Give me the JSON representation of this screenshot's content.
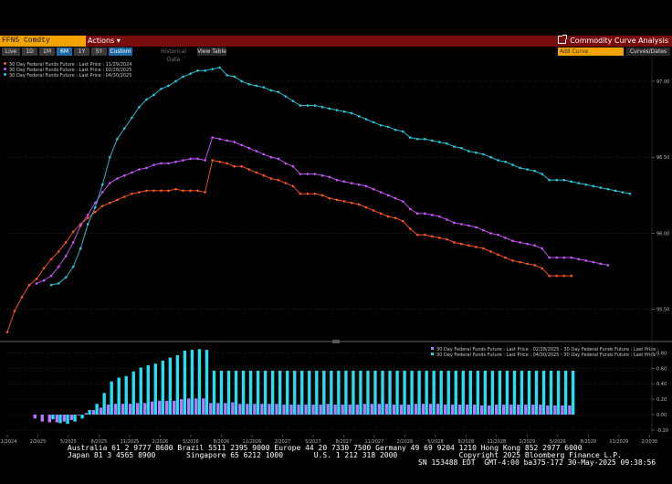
{
  "title_bar": {
    "ticker": "FFN5 Comdty",
    "actions_label": "Actions ▾",
    "analysis_label": "Commodity Curve Analysis"
  },
  "toolbar": {
    "buttons": [
      "Live",
      "1D",
      "1M",
      "6M",
      "1Y",
      "5Y",
      "Custom"
    ],
    "active_button": "Custom",
    "historical_label": "Historical Date",
    "view_table_label": "View Table",
    "add_curve_placeholder": "Add Curve",
    "curves_dates_label": "Curves/Dates"
  },
  "colors": {
    "series_1": "#ff5522",
    "series_2": "#cc55ff",
    "series_3": "#22ccdd",
    "bar_1": "#bb77ff",
    "bar_2": "#22e0f0",
    "title_bar": "#7a0d0d",
    "ticker_bg": "#f4a300",
    "active_button": "#1f6aa5"
  },
  "footer": {
    "line1": "Australia 61 2 9777 8600 Brazil 5511 2395 9000 Europe 44 20 7330 7500 Germany 49 69 9204 1210 Hong Kong 852 2977 6000",
    "line2": "Japan 81 3 4565 8900       Singapore 65 6212 1000       U.S. 1 212 318 2000              Copyright 2025 Bloomberg Finance L.P.",
    "line3": "SN 153488 EDT  GMT-4:00 ba375-172 30-May-2025 09:38:56"
  },
  "chart_data": [
    {
      "type": "line",
      "title": "",
      "x_tick_labels": [
        "11/2024",
        "2/2025",
        "5/2025",
        "8/2025",
        "11/2025",
        "2/2026",
        "5/2026",
        "8/2026",
        "11/2026",
        "2/2027",
        "5/2027",
        "8/2027",
        "11/2027",
        "2/2028",
        "5/2028",
        "8/2028",
        "11/2028",
        "2/2029",
        "5/2029",
        "8/2029",
        "11/2029",
        "2/2030"
      ],
      "y_tick_labels": [
        "95.50",
        "96.00",
        "96.50",
        "97.00"
      ],
      "ylim": [
        95.3,
        97.15
      ],
      "series": [
        {
          "name": "30 Day Federal Funds Future : Last Price : 11/29/2024",
          "color": "#ff5522",
          "values": [
            95.35,
            95.49,
            95.58,
            95.66,
            95.7,
            95.77,
            95.83,
            95.88,
            95.94,
            96.01,
            96.06,
            96.1,
            96.14,
            96.18,
            96.2,
            96.22,
            96.24,
            96.26,
            96.27,
            96.28,
            96.28,
            96.28,
            96.28,
            96.29,
            96.28,
            96.28,
            96.28,
            96.27,
            96.48,
            96.47,
            96.46,
            96.44,
            96.44,
            96.42,
            96.4,
            96.38,
            96.36,
            96.35,
            96.33,
            96.31,
            96.26,
            96.26,
            96.26,
            96.25,
            96.23,
            96.22,
            96.21,
            96.2,
            96.19,
            96.17,
            96.15,
            96.13,
            96.11,
            96.1,
            96.08,
            96.03,
            95.99,
            95.99,
            95.98,
            95.97,
            95.96,
            95.94,
            95.93,
            95.92,
            95.91,
            95.9,
            95.88,
            95.86,
            95.84,
            95.82,
            95.81,
            95.8,
            95.79,
            95.77,
            95.72,
            95.72,
            95.72,
            95.72
          ]
        },
        {
          "name": "30 Day Federal Funds Future : Last Price : 02/28/2025",
          "color": "#cc55ff",
          "values": [
            null,
            null,
            null,
            null,
            95.67,
            95.69,
            95.72,
            95.78,
            95.85,
            95.94,
            96.05,
            96.12,
            96.2,
            96.27,
            96.33,
            96.36,
            96.38,
            96.4,
            96.42,
            96.43,
            96.45,
            96.46,
            96.46,
            96.47,
            96.48,
            96.49,
            96.49,
            96.48,
            96.63,
            96.62,
            96.61,
            96.6,
            96.58,
            96.56,
            96.54,
            96.52,
            96.5,
            96.49,
            96.46,
            96.44,
            96.39,
            96.39,
            96.39,
            96.38,
            96.37,
            96.35,
            96.34,
            96.33,
            96.32,
            96.31,
            96.29,
            96.27,
            96.25,
            96.23,
            96.21,
            96.16,
            96.13,
            96.13,
            96.12,
            96.11,
            96.09,
            96.07,
            96.06,
            96.05,
            96.04,
            96.02,
            96.0,
            95.99,
            95.97,
            95.95,
            95.94,
            95.93,
            95.92,
            95.9,
            95.84,
            95.84,
            95.84,
            95.84,
            95.83,
            95.82,
            95.81,
            95.8,
            95.79
          ]
        },
        {
          "name": "30 Day Federal Funds Future : Last Price : 04/30/2025",
          "color": "#22ccdd",
          "values": [
            null,
            null,
            null,
            null,
            null,
            null,
            95.66,
            95.67,
            95.71,
            95.78,
            95.9,
            96.06,
            96.17,
            96.32,
            96.5,
            96.62,
            96.69,
            96.76,
            96.83,
            96.88,
            96.91,
            96.95,
            96.97,
            97.0,
            97.03,
            97.05,
            97.07,
            97.07,
            97.08,
            97.09,
            97.04,
            97.03,
            97.0,
            96.98,
            96.97,
            96.96,
            96.94,
            96.93,
            96.9,
            96.87,
            96.84,
            96.84,
            96.84,
            96.83,
            96.82,
            96.81,
            96.8,
            96.79,
            96.77,
            96.75,
            96.73,
            96.71,
            96.7,
            96.68,
            96.67,
            96.63,
            96.62,
            96.62,
            96.61,
            96.6,
            96.59,
            96.57,
            96.56,
            96.54,
            96.53,
            96.52,
            96.5,
            96.48,
            96.47,
            96.45,
            96.43,
            96.42,
            96.41,
            96.39,
            96.35,
            96.35,
            96.35,
            96.34,
            96.33,
            96.32,
            96.31,
            96.3,
            96.29,
            96.28,
            96.27,
            96.26
          ]
        }
      ]
    },
    {
      "type": "bar",
      "title": "",
      "y_tick_labels": [
        "-0.20",
        "0.00",
        "0.20",
        "0.40",
        "0.60",
        "0.80"
      ],
      "ylim": [
        -0.26,
        0.9
      ],
      "series": [
        {
          "name": "30 Day Federal Funds Future : Last Price : 02/28/2025 - 30 Day Federal Funds Future : Last Price :",
          "color": "#bb77ff",
          "values": [
            null,
            null,
            null,
            null,
            -0.05,
            -0.09,
            -0.1,
            -0.1,
            -0.09,
            -0.07,
            -0.01,
            0.02,
            0.06,
            0.09,
            0.13,
            0.14,
            0.14,
            0.14,
            0.15,
            0.15,
            0.17,
            0.18,
            0.18,
            0.18,
            0.2,
            0.21,
            0.21,
            0.21,
            0.15,
            0.15,
            0.15,
            0.16,
            0.14,
            0.14,
            0.14,
            0.14,
            0.14,
            0.14,
            0.13,
            0.13,
            0.13,
            0.13,
            0.13,
            0.13,
            0.14,
            0.13,
            0.13,
            0.13,
            0.13,
            0.14,
            0.14,
            0.14,
            0.14,
            0.13,
            0.13,
            0.13,
            0.14,
            0.14,
            0.14,
            0.14,
            0.13,
            0.13,
            0.13,
            0.13,
            0.13,
            0.12,
            0.12,
            0.13,
            0.13,
            0.13,
            0.13,
            0.13,
            0.13,
            0.13,
            0.12,
            0.12,
            0.12,
            0.12
          ]
        },
        {
          "name": "30 Day Federal Funds Future : Last Price : 04/30/2025 - 30 Day Federal Funds Future : Last Price :",
          "color": "#22e0f0",
          "values": [
            null,
            null,
            null,
            null,
            null,
            null,
            -0.06,
            -0.11,
            -0.12,
            -0.09,
            -0.05,
            0.06,
            0.14,
            0.28,
            0.43,
            0.48,
            0.5,
            0.56,
            0.61,
            0.64,
            0.66,
            0.7,
            0.74,
            0.77,
            0.83,
            0.84,
            0.85,
            0.84,
            0.57,
            0.57,
            0.57,
            0.57,
            0.57,
            0.57,
            0.57,
            0.57,
            0.57,
            0.57,
            0.57,
            0.57,
            0.57,
            0.57,
            0.57,
            0.57,
            0.57,
            0.57,
            0.57,
            0.57,
            0.57,
            0.57,
            0.57,
            0.57,
            0.57,
            0.57,
            0.57,
            0.57,
            0.57,
            0.57,
            0.57,
            0.57,
            0.57,
            0.57,
            0.57,
            0.57,
            0.57,
            0.57,
            0.57,
            0.57,
            0.57,
            0.57,
            0.57,
            0.57,
            0.57,
            0.57,
            0.57,
            0.57,
            0.57,
            0.57
          ]
        }
      ]
    }
  ]
}
